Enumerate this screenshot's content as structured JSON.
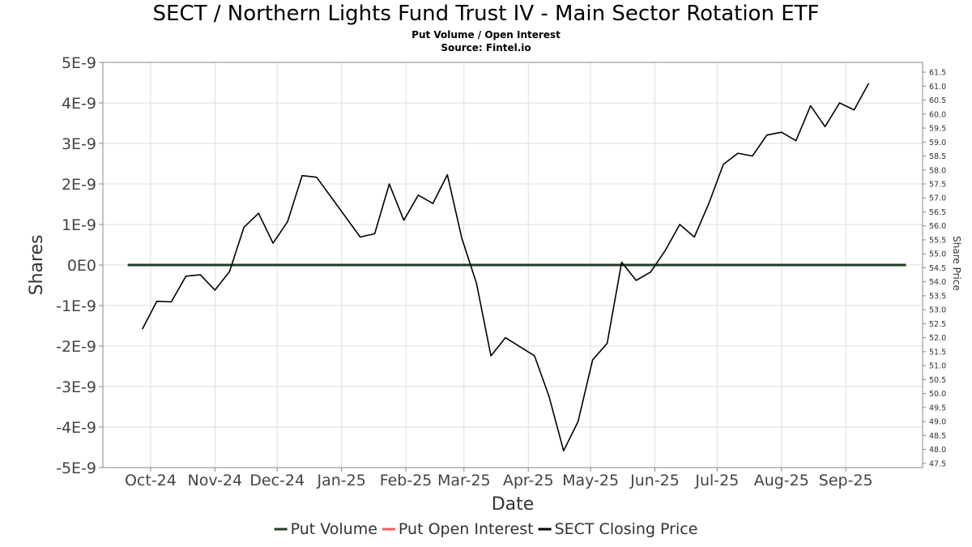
{
  "chart_data": {
    "type": "line",
    "title": "SECT / Northern Lights Fund Trust IV - Main Sector Rotation ETF",
    "subtitle": "Put Volume / Open Interest",
    "source": "Source: Fintel.io",
    "xlabel": "Date",
    "ylabel": "Shares",
    "y2label": "Share Price",
    "x_ticks": [
      "Oct-24",
      "Nov-24",
      "Dec-24",
      "Jan-25",
      "Feb-25",
      "Mar-25",
      "Apr-25",
      "May-25",
      "Jun-25",
      "Jul-25",
      "Aug-25",
      "Sep-25"
    ],
    "y_ticks": [
      "5E-9",
      "4E-9",
      "3E-9",
      "2E-9",
      "1E-9",
      "0E0",
      "-1E-9",
      "-2E-9",
      "-3E-9",
      "-4E-9",
      "-5E-9"
    ],
    "y_lim": [
      -5e-09,
      5e-09
    ],
    "y2_ticks": [
      "61.5",
      "61.0",
      "60.5",
      "60.0",
      "59.5",
      "59.0",
      "58.5",
      "58.0",
      "57.5",
      "57.0",
      "56.5",
      "56.0",
      "55.5",
      "55.0",
      "54.5",
      "54.0",
      "53.5",
      "53.0",
      "52.5",
      "52.0",
      "51.5",
      "51.0",
      "50.5",
      "50.0",
      "49.5",
      "49.0",
      "48.5",
      "48.0",
      "47.5"
    ],
    "y2_lim": [
      47.35,
      61.85
    ],
    "grid": true,
    "legend_position": "bottom",
    "series": [
      {
        "name": "Put Volume",
        "axis": "left",
        "color": "#1f3d1f",
        "x": [
          "2024-09-20",
          "2025-09-30"
        ],
        "values": [
          0,
          0
        ]
      },
      {
        "name": "Put Open Interest",
        "axis": "left",
        "color": "#ff5a5a",
        "x": [
          "2024-09-20",
          "2025-09-30"
        ],
        "values": [
          0,
          0
        ]
      },
      {
        "name": "SECT Closing Price",
        "axis": "right",
        "color": "#000000",
        "x": [
          "2024-09-27",
          "2024-10-04",
          "2024-10-11",
          "2024-10-18",
          "2024-10-25",
          "2024-11-01",
          "2024-11-08",
          "2024-11-15",
          "2024-11-22",
          "2024-11-29",
          "2024-12-06",
          "2024-12-13",
          "2024-12-20",
          "2025-01-10",
          "2025-01-17",
          "2025-01-24",
          "2025-01-31",
          "2025-02-07",
          "2025-02-14",
          "2025-02-21",
          "2025-02-28",
          "2025-03-07",
          "2025-03-14",
          "2025-03-21",
          "2025-04-04",
          "2025-04-11",
          "2025-04-18",
          "2025-04-25",
          "2025-05-02",
          "2025-05-09",
          "2025-05-16",
          "2025-05-23",
          "2025-05-30",
          "2025-06-06",
          "2025-06-13",
          "2025-06-20",
          "2025-06-27",
          "2025-07-04",
          "2025-07-11",
          "2025-07-18",
          "2025-07-25",
          "2025-08-01",
          "2025-08-08",
          "2025-08-15",
          "2025-08-22",
          "2025-08-29",
          "2025-09-05",
          "2025-09-12"
        ],
        "values": [
          52.3,
          53.3,
          53.28,
          54.2,
          54.25,
          53.7,
          54.36,
          55.95,
          56.45,
          55.38,
          56.15,
          57.8,
          57.74,
          55.6,
          55.72,
          57.5,
          56.2,
          57.1,
          56.8,
          57.83,
          55.55,
          53.95,
          51.35,
          52.0,
          51.35,
          49.9,
          47.95,
          49.0,
          51.2,
          51.8,
          54.7,
          54.05,
          54.35,
          55.12,
          56.05,
          55.6,
          56.8,
          58.2,
          58.6,
          58.5,
          59.25,
          59.35,
          59.05,
          60.3,
          59.55,
          60.4,
          60.15,
          61.1
        ]
      }
    ]
  }
}
